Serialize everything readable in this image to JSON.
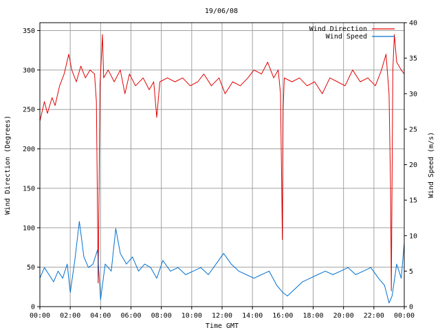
{
  "chart_data": {
    "type": "line",
    "title": "19/06/08",
    "xlabel": "Time GMT",
    "ylabel_left": "Wind Direction (Degrees)",
    "ylabel_right": "Wind Speed (m/s)",
    "xlim_hours": [
      0,
      24
    ],
    "ylim_left": [
      0,
      360
    ],
    "ylim_right": [
      0,
      40
    ],
    "grid": true,
    "legend_position": "top-right",
    "x_ticks": [
      "00:00",
      "02:00",
      "04:00",
      "06:00",
      "08:00",
      "10:00",
      "12:00",
      "14:00",
      "16:00",
      "18:00",
      "20:00",
      "22:00",
      "00:00"
    ],
    "x_tick_hours": [
      0,
      2,
      4,
      6,
      8,
      10,
      12,
      14,
      16,
      18,
      20,
      22,
      24
    ],
    "y_ticks_left": [
      0,
      50,
      100,
      150,
      200,
      250,
      300,
      350
    ],
    "y_ticks_right": [
      0,
      5,
      10,
      15,
      20,
      25,
      30,
      35,
      40
    ],
    "colors": {
      "wind_direction": "#e00000",
      "wind_speed": "#0070d0",
      "grid": "#a0a0a0",
      "axis": "#000000"
    },
    "series": [
      {
        "name": "Wind Direction",
        "axis": "left",
        "points": [
          [
            0,
            235
          ],
          [
            0.3,
            260
          ],
          [
            0.5,
            245
          ],
          [
            0.8,
            265
          ],
          [
            1.0,
            255
          ],
          [
            1.3,
            280
          ],
          [
            1.6,
            295
          ],
          [
            1.9,
            320
          ],
          [
            2.1,
            300
          ],
          [
            2.4,
            285
          ],
          [
            2.7,
            305
          ],
          [
            3.0,
            290
          ],
          [
            3.3,
            300
          ],
          [
            3.6,
            295
          ],
          [
            3.72,
            260
          ],
          [
            3.78,
            150
          ],
          [
            3.84,
            30
          ],
          [
            3.9,
            150
          ],
          [
            3.96,
            280
          ],
          [
            4.05,
            315
          ],
          [
            4.12,
            345
          ],
          [
            4.2,
            290
          ],
          [
            4.5,
            300
          ],
          [
            4.9,
            285
          ],
          [
            5.3,
            300
          ],
          [
            5.6,
            270
          ],
          [
            5.9,
            295
          ],
          [
            6.3,
            280
          ],
          [
            6.8,
            290
          ],
          [
            7.2,
            275
          ],
          [
            7.5,
            285
          ],
          [
            7.7,
            240
          ],
          [
            7.9,
            285
          ],
          [
            8.4,
            290
          ],
          [
            8.9,
            285
          ],
          [
            9.4,
            290
          ],
          [
            9.9,
            280
          ],
          [
            10.4,
            285
          ],
          [
            10.8,
            295
          ],
          [
            11.3,
            280
          ],
          [
            11.8,
            290
          ],
          [
            12.2,
            270
          ],
          [
            12.7,
            285
          ],
          [
            13.2,
            280
          ],
          [
            13.7,
            290
          ],
          [
            14.1,
            300
          ],
          [
            14.6,
            295
          ],
          [
            15.0,
            310
          ],
          [
            15.4,
            290
          ],
          [
            15.7,
            300
          ],
          [
            15.85,
            270
          ],
          [
            15.93,
            150
          ],
          [
            15.97,
            85
          ],
          [
            16.02,
            250
          ],
          [
            16.1,
            290
          ],
          [
            16.6,
            285
          ],
          [
            17.1,
            290
          ],
          [
            17.6,
            280
          ],
          [
            18.1,
            285
          ],
          [
            18.6,
            270
          ],
          [
            19.1,
            290
          ],
          [
            19.6,
            285
          ],
          [
            20.1,
            280
          ],
          [
            20.6,
            300
          ],
          [
            21.1,
            285
          ],
          [
            21.6,
            290
          ],
          [
            22.1,
            280
          ],
          [
            22.5,
            300
          ],
          [
            22.8,
            320
          ],
          [
            23.0,
            270
          ],
          [
            23.1,
            150
          ],
          [
            23.15,
            20
          ],
          [
            23.25,
            300
          ],
          [
            23.35,
            345
          ],
          [
            23.5,
            310
          ],
          [
            23.8,
            300
          ],
          [
            24.0,
            295
          ]
        ]
      },
      {
        "name": "Wind Speed",
        "axis": "right",
        "points": [
          [
            0,
            4
          ],
          [
            0.3,
            5.5
          ],
          [
            0.6,
            4.5
          ],
          [
            0.9,
            3.5
          ],
          [
            1.2,
            5
          ],
          [
            1.5,
            4
          ],
          [
            1.8,
            6
          ],
          [
            2.0,
            2
          ],
          [
            2.3,
            6.5
          ],
          [
            2.6,
            12
          ],
          [
            2.9,
            7
          ],
          [
            3.2,
            5.5
          ],
          [
            3.5,
            6
          ],
          [
            3.8,
            8
          ],
          [
            4.0,
            1
          ],
          [
            4.3,
            6
          ],
          [
            4.7,
            5
          ],
          [
            5.0,
            11
          ],
          [
            5.3,
            7.5
          ],
          [
            5.7,
            6
          ],
          [
            6.1,
            7
          ],
          [
            6.5,
            5
          ],
          [
            6.9,
            6
          ],
          [
            7.3,
            5.5
          ],
          [
            7.7,
            4
          ],
          [
            8.1,
            6.5
          ],
          [
            8.6,
            5
          ],
          [
            9.1,
            5.5
          ],
          [
            9.6,
            4.5
          ],
          [
            10.1,
            5
          ],
          [
            10.6,
            5.5
          ],
          [
            11.1,
            4.5
          ],
          [
            11.6,
            6
          ],
          [
            12.1,
            7.5
          ],
          [
            12.6,
            6
          ],
          [
            13.1,
            5
          ],
          [
            13.6,
            4.5
          ],
          [
            14.1,
            4
          ],
          [
            14.6,
            4.5
          ],
          [
            15.1,
            5
          ],
          [
            15.6,
            3
          ],
          [
            16.0,
            2
          ],
          [
            16.3,
            1.5
          ],
          [
            16.8,
            2.5
          ],
          [
            17.3,
            3.5
          ],
          [
            17.8,
            4
          ],
          [
            18.3,
            4.5
          ],
          [
            18.8,
            5
          ],
          [
            19.3,
            4.5
          ],
          [
            19.8,
            5
          ],
          [
            20.3,
            5.5
          ],
          [
            20.8,
            4.5
          ],
          [
            21.3,
            5
          ],
          [
            21.8,
            5.5
          ],
          [
            22.3,
            4
          ],
          [
            22.7,
            3
          ],
          [
            23.0,
            0.5
          ],
          [
            23.2,
            1.5
          ],
          [
            23.5,
            6
          ],
          [
            23.8,
            4
          ],
          [
            24.0,
            9
          ]
        ]
      }
    ]
  }
}
